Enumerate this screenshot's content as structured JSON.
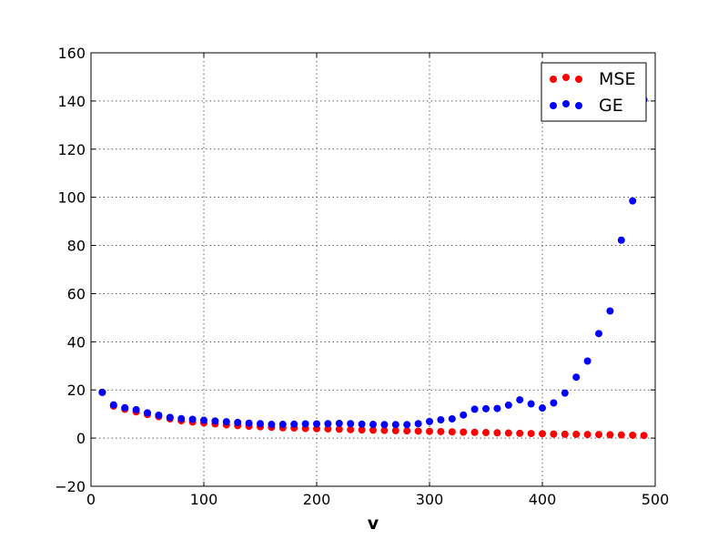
{
  "chart_data": {
    "type": "scatter",
    "title": "",
    "xlabel": "v",
    "ylabel": "",
    "xlim": [
      0,
      500
    ],
    "ylim": [
      -20,
      160
    ],
    "xticks": [
      0,
      100,
      200,
      300,
      400,
      500
    ],
    "yticks": [
      -20,
      0,
      20,
      40,
      60,
      80,
      100,
      120,
      140,
      160
    ],
    "grid": true,
    "legend_position": "top-right",
    "x": [
      10,
      20,
      30,
      40,
      50,
      60,
      70,
      80,
      90,
      100,
      110,
      120,
      130,
      140,
      150,
      160,
      170,
      180,
      190,
      200,
      210,
      220,
      230,
      240,
      250,
      260,
      270,
      280,
      290,
      300,
      310,
      320,
      330,
      340,
      350,
      360,
      370,
      380,
      390,
      400,
      410,
      420,
      430,
      440,
      450,
      460,
      470,
      480,
      490
    ],
    "series": [
      {
        "name": "MSE",
        "color": "#ff0000",
        "values": [
          19.0,
          13.3,
          12.0,
          10.9,
          9.8,
          8.9,
          8.0,
          7.2,
          6.7,
          6.3,
          5.9,
          5.5,
          5.2,
          4.9,
          4.7,
          4.5,
          4.3,
          4.2,
          4.0,
          3.9,
          3.8,
          3.7,
          3.5,
          3.4,
          3.3,
          3.2,
          3.1,
          3.0,
          2.9,
          2.8,
          2.7,
          2.6,
          2.5,
          2.4,
          2.3,
          2.2,
          2.1,
          2.0,
          1.9,
          1.8,
          1.7,
          1.6,
          1.6,
          1.5,
          1.5,
          1.4,
          1.3,
          1.2,
          1.1
        ]
      },
      {
        "name": "GE",
        "color": "#0000ff",
        "values": [
          19.0,
          13.8,
          12.6,
          11.8,
          10.5,
          9.5,
          8.6,
          8.1,
          7.8,
          7.4,
          7.1,
          6.8,
          6.5,
          6.2,
          6.0,
          5.7,
          5.7,
          5.8,
          5.9,
          5.9,
          6.0,
          6.1,
          6.0,
          5.8,
          5.7,
          5.6,
          5.6,
          5.6,
          6.0,
          6.9,
          7.6,
          8.0,
          9.6,
          12.0,
          12.2,
          12.3,
          13.7,
          15.9,
          14.2,
          12.5,
          14.6,
          18.7,
          25.3,
          32.0,
          43.4,
          52.8,
          82.2,
          98.5,
          140.5
        ]
      }
    ]
  }
}
